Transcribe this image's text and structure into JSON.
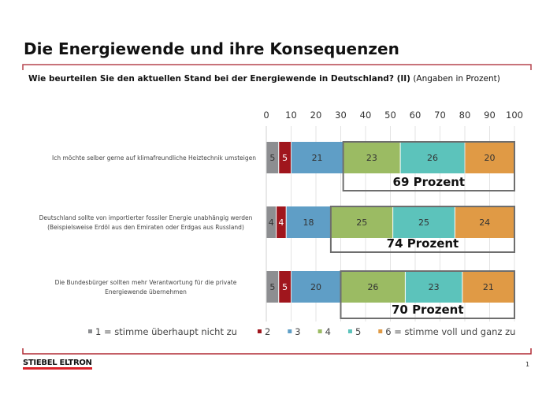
{
  "title": "Die Energiewende und ihre Konsequenzen",
  "subtitle": {
    "question": "Wie beurteilen Sie den aktuellen Stand bei der Energiewende in Deutschland? (II)",
    "note": "(Angaben in Prozent)"
  },
  "footer": {
    "logo": "STIEBEL ELTRON",
    "page": "1"
  },
  "colors": {
    "accent": "#b5454f",
    "s1": "#8d8e91",
    "s2": "#a0161d",
    "s3": "#5f9ec6",
    "s4": "#9bbb63",
    "s5": "#5cc3bb",
    "s6": "#e09a45"
  },
  "chart_data": {
    "type": "bar",
    "orientation": "horizontal-stacked",
    "xlim": [
      0,
      100
    ],
    "xticks": [
      "0",
      "10",
      "20",
      "30",
      "40",
      "50",
      "60",
      "70",
      "80",
      "90",
      "100"
    ],
    "grid": true,
    "legend_position": "bottom",
    "categories": [
      [
        "Ich möchte selber gerne auf klimafreundliche Heiztechnik umsteigen"
      ],
      [
        "Deutschland sollte von importierter fossiler Energie unabhängig werden",
        "(Beispielsweise Erdöl aus den Emiraten oder Erdgas aus Russland)"
      ],
      [
        "Die Bundesbürger sollten mehr Verantwortung für die private",
        "Energiewende übernehmen"
      ]
    ],
    "series": [
      {
        "name": "1 = stimme überhaupt nicht zu",
        "values": [
          5,
          4,
          5
        ]
      },
      {
        "name": "2",
        "values": [
          5,
          4,
          5
        ]
      },
      {
        "name": "3",
        "values": [
          21,
          18,
          20
        ]
      },
      {
        "name": "4",
        "values": [
          23,
          25,
          26
        ]
      },
      {
        "name": "5",
        "values": [
          26,
          25,
          23
        ]
      },
      {
        "name": "6 = stimme voll und ganz zu",
        "values": [
          20,
          24,
          21
        ]
      }
    ],
    "annotations": [
      "69 Prozent",
      "74 Prozent",
      "70 Prozent"
    ]
  }
}
